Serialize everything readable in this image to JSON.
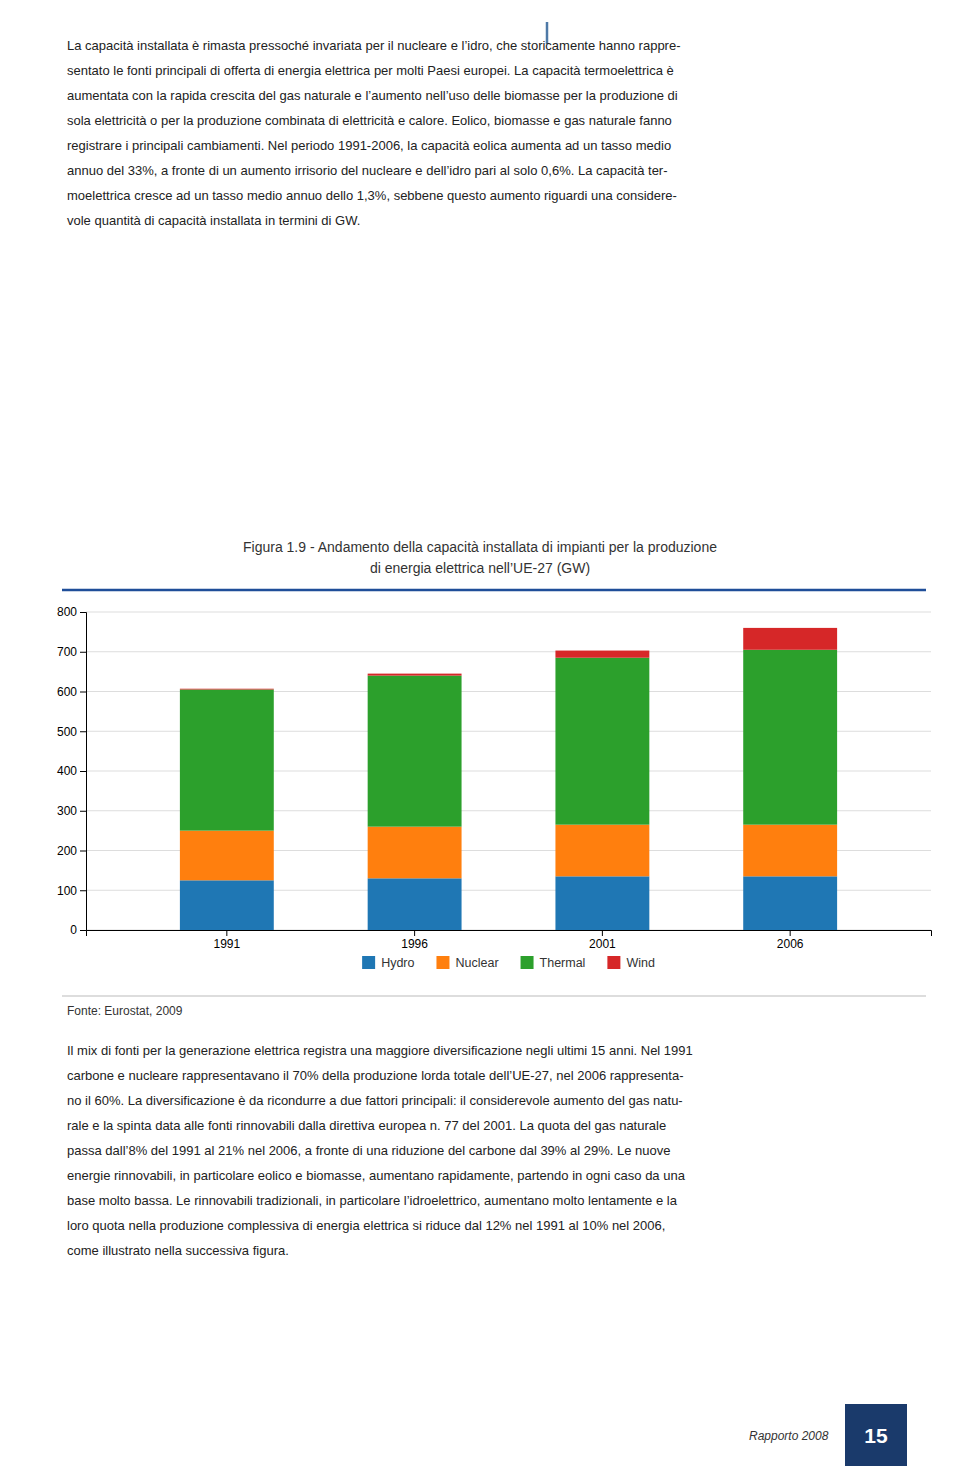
{
  "chart_data": {
    "type": "bar",
    "title": "Figura 1.9 - Andamento della capacità installata di impianti per la produzione\ndi energia elettrica nell’UE-27 (GW)",
    "categories": [
      "1991",
      "1996",
      "2001",
      "2006"
    ],
    "series": [
      {
        "name": "Hydro",
        "values": [
          125,
          130,
          135,
          135
        ]
      },
      {
        "name": "Nuclear",
        "values": [
          125,
          130,
          130,
          130
        ]
      },
      {
        "name": "Thermal",
        "values": [
          355,
          380,
          420,
          440
        ]
      },
      {
        "name": "Wind",
        "values": [
          2,
          5,
          18,
          55
        ]
      }
    ],
    "stacked": true,
    "ylim": [
      0,
      800
    ],
    "yticks": [
      0,
      100,
      200,
      300,
      400,
      500,
      600,
      700,
      800
    ],
    "grid": true,
    "legend": "bottom",
    "annotations": [
      "La capacità installata è rimasta pressoché invariata per il nucleare e l’idro, che storicamente hanno rappre-\nsentato le fonti principali di offerta di energia elettrica per molti Paesi europei. La capacità termoelettrica è\naumentata con la rapida crescita del gas naturale e l’aumento nell’uso delle biomasse per la produzione di\nsola elettricità o per la produzione combinata di elettricità e calore. Eolico, biomasse e gas naturale fanno\nregistrare i principali cambiamenti. Nel periodo 1991-2006, la capacità eolica aumenta ad un tasso medio\nannuo del 33%, a fronte di un aumento irrisorio del nucleare e dell’idro pari al solo 0,6%. La capacità ter-\nmoelettrica cresce ad un tasso medio annuo dello 1,3%, sebbene questo aumento riguardi una considere-\nvole quantità di capacità installata in termini di GW.",
      "Fonte: Eurostat, 2009",
      "Il mix di fonti per la generazione elettrica registra una maggiore diversificazione negli ultimi 15 anni. Nel 1991\ncarbone e nucleare rappresentavano il 70% della produzione lorda totale dell’UE-27, nel 2006 rappresenta-\nno il 60%. La diversificazione è da ricondurre a due fattori principali: il considerevole aumento del gas natu-\nrale e la spinta data alle fonti rinnovabili dalla direttiva europea n. 77 del 2001. La quota del gas naturale\npassa dall’8% del 1991 al 21% nel 2006, a fronte di una riduzione del carbone dal 39% al 29%. Le nuove\nenergie rinnovabili, in particolare eolico e biomasse, aumentano rapidamente, partendo in ogni caso da una\nbase molto bassa. Le rinnovabili tradizionali, in particolare l’idroelettrico, aumentano molto lentamente e la\nloro quota nella produzione complessiva di energia elettrica si riduce dal 12% nel 1991 al 10% nel 2006,\ncome illustrato nella successiva figura.",
      "Rapporto 2008",
      "15"
    ]
  }
}
